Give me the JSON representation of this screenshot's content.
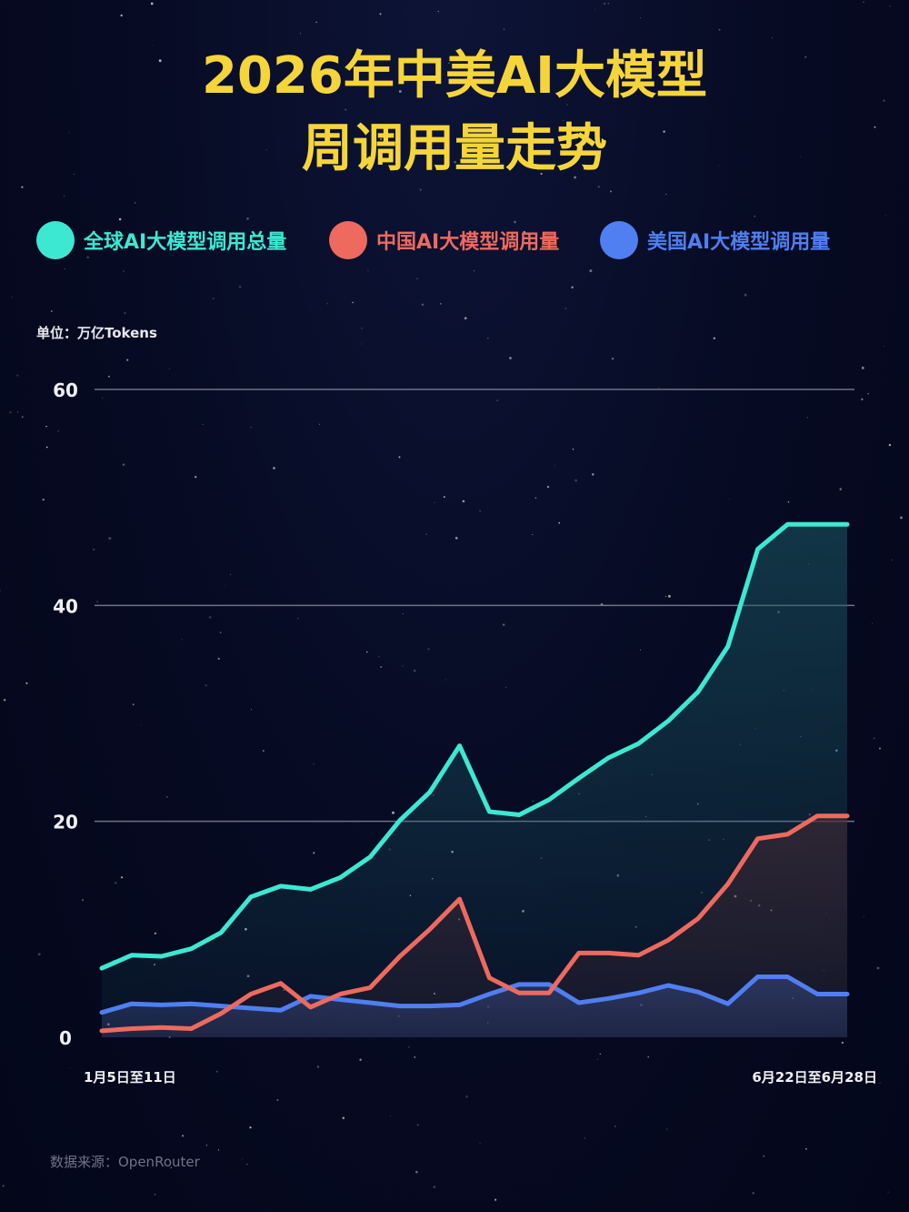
{
  "title_line1": "2026年中美AI大模型",
  "title_line2": "周调用量走势",
  "unit": "单位：万亿Tokens",
  "source": "数据来源：OpenRouter",
  "colors": {
    "global": "#3de8d2",
    "china": "#ee6a5e",
    "usa": "#4f7ff0",
    "title": "#f5d53a",
    "grid": "#6e7388"
  },
  "chart_data": {
    "type": "line",
    "title": "2026年中美AI大模型周调用量走势",
    "ylabel": "单位：万亿Tokens",
    "xlabel": "",
    "ylim": [
      0,
      60
    ],
    "yticks": [
      0,
      20,
      40,
      60
    ],
    "x_tick_labels": [
      "1月5日至11日",
      "6月22日至6月28日"
    ],
    "grid": true,
    "legend_position": "top",
    "x": [
      1,
      2,
      3,
      4,
      5,
      6,
      7,
      8,
      9,
      10,
      11,
      12,
      13,
      14,
      15,
      16,
      17,
      18,
      19,
      20,
      21,
      22,
      23,
      24,
      25,
      26
    ],
    "series": [
      {
        "name": "全球AI大模型调用总量",
        "color": "#3de8d2",
        "values": [
          6.4,
          7.6,
          7.5,
          8.2,
          9.7,
          13.0,
          14.0,
          13.7,
          14.8,
          16.7,
          20.1,
          22.7,
          27.0,
          20.9,
          20.6,
          22.0,
          24.0,
          25.9,
          27.2,
          29.3,
          32.0,
          36.2,
          45.2,
          47.5,
          47.5,
          47.5
        ]
      },
      {
        "name": "中国AI大模型调用量",
        "color": "#ee6a5e",
        "values": [
          0.6,
          0.8,
          0.9,
          0.8,
          2.2,
          4.0,
          5.0,
          2.8,
          4.0,
          4.6,
          7.5,
          10.0,
          12.8,
          5.5,
          4.1,
          4.1,
          7.8,
          7.8,
          7.6,
          9.0,
          11.0,
          14.2,
          18.4,
          18.8,
          20.5,
          20.5
        ]
      },
      {
        "name": "美国AI大模型调用量",
        "color": "#4f7ff0",
        "values": [
          2.3,
          3.1,
          3.0,
          3.1,
          2.9,
          2.7,
          2.5,
          3.8,
          3.5,
          3.2,
          2.9,
          2.9,
          3.0,
          4.0,
          4.9,
          4.9,
          3.2,
          3.6,
          4.1,
          4.8,
          4.2,
          3.1,
          5.6,
          5.6,
          4.0,
          4.0
        ]
      }
    ]
  }
}
